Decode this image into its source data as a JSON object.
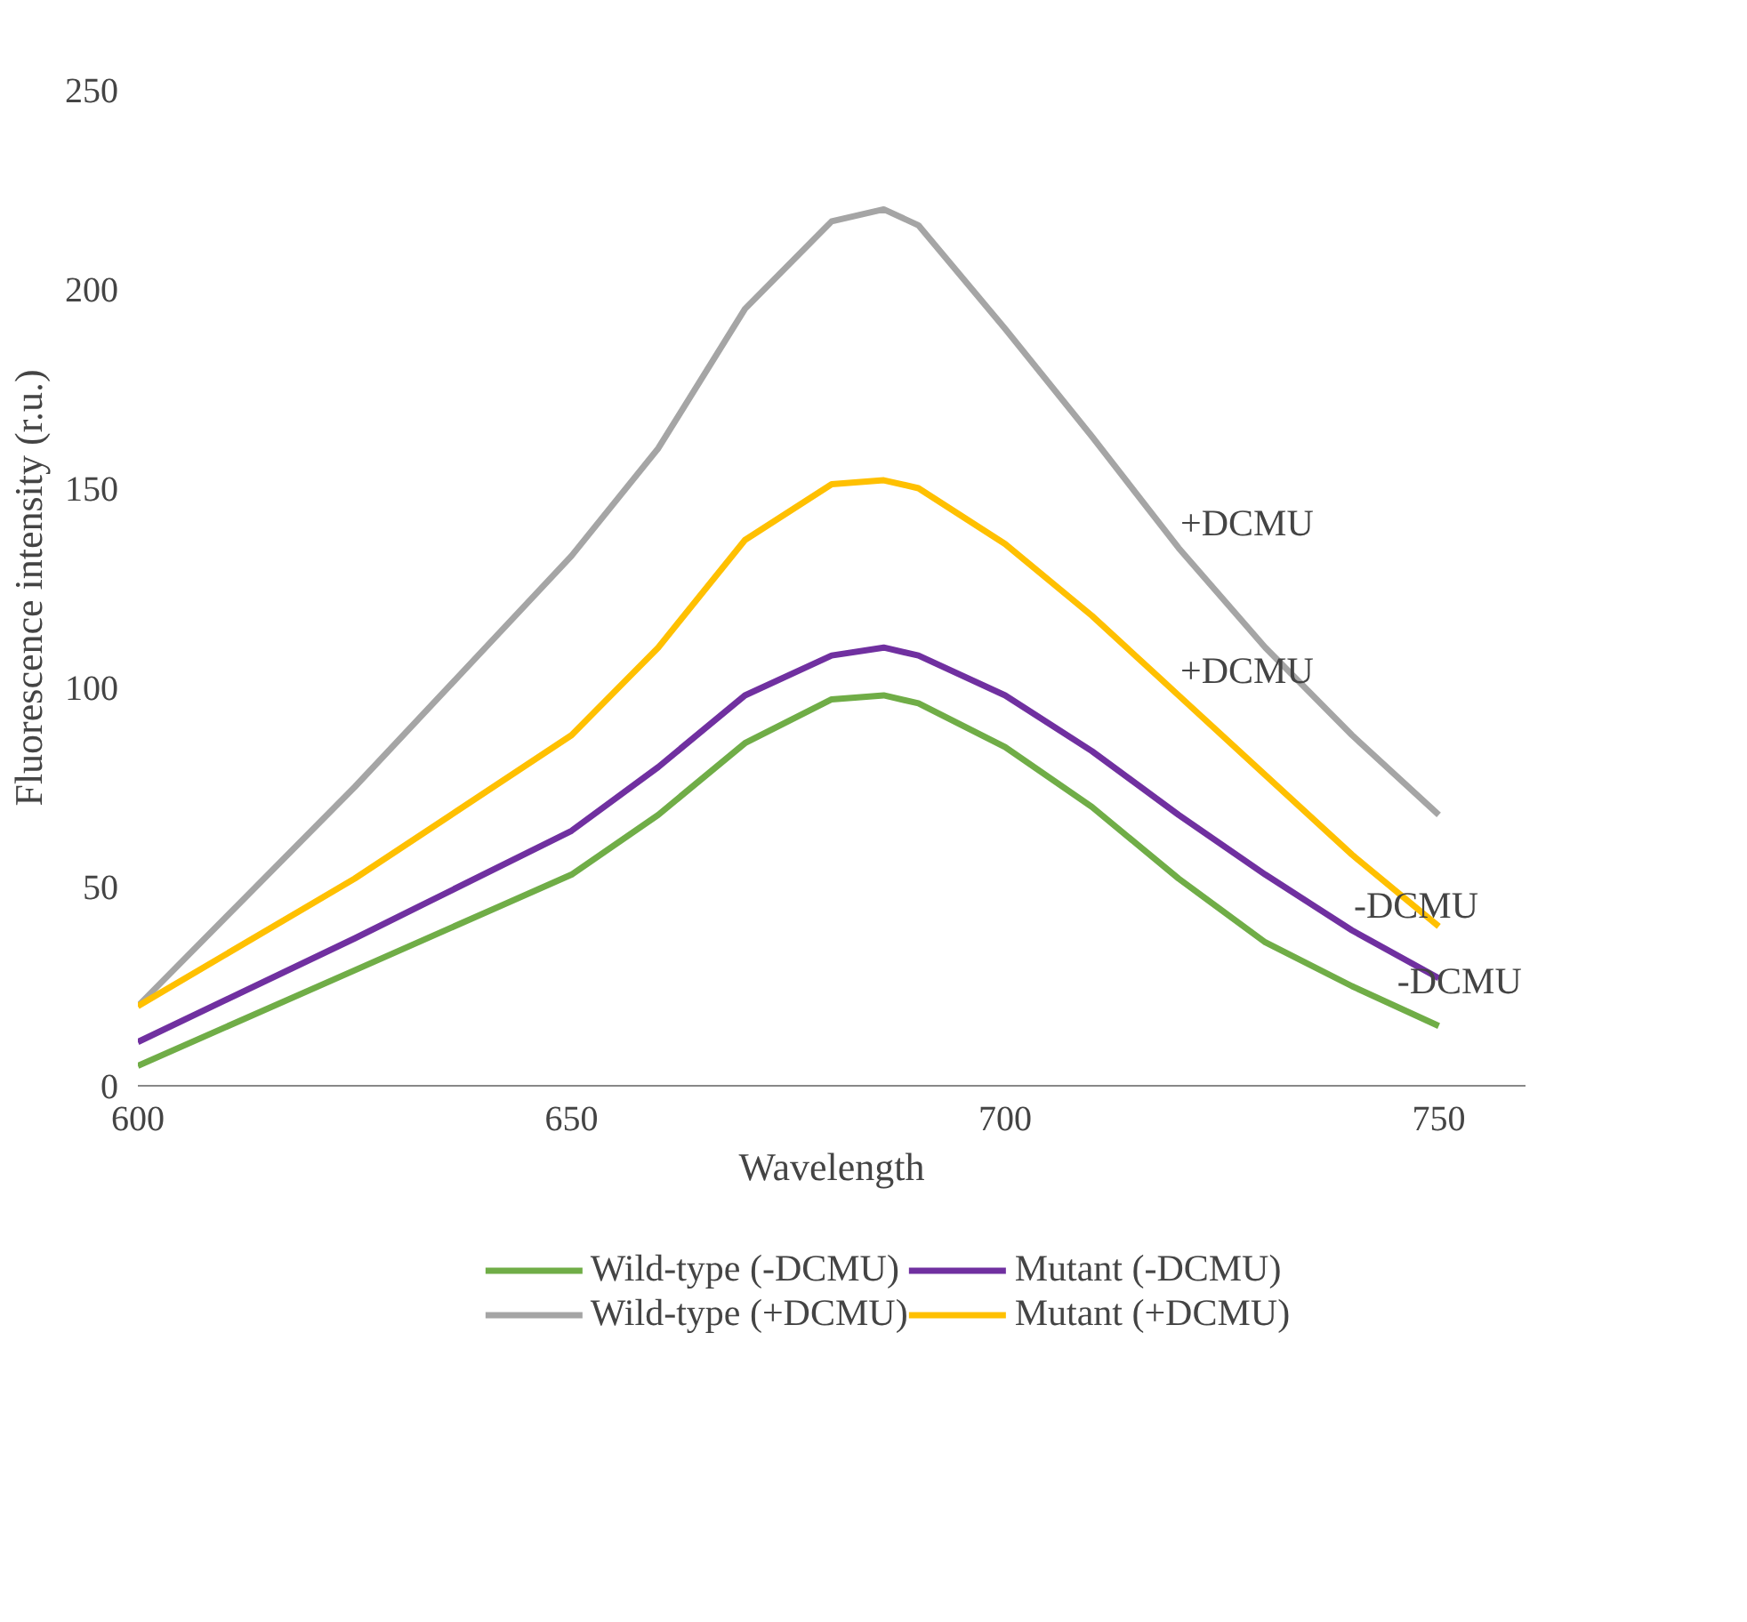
{
  "chart_data": {
    "type": "line",
    "xlabel": "Wavelength",
    "ylabel": "Fluorescence intensity (r.u.)",
    "x": [
      600,
      625,
      650,
      660,
      670,
      680,
      686,
      690,
      700,
      710,
      720,
      730,
      740,
      750
    ],
    "xlim": [
      600,
      760
    ],
    "xticks": [
      600,
      650,
      700,
      750
    ],
    "ylim": [
      0,
      250
    ],
    "yticks": [
      0,
      50,
      100,
      150,
      200,
      250
    ],
    "grid": false,
    "legend": "bottom",
    "line_style": "solid",
    "marker": "none",
    "series": [
      {
        "name": "Wild-type (-DCMU)",
        "color": "#70ad47",
        "values": [
          5,
          29,
          53,
          68,
          86,
          97,
          98,
          96,
          85,
          70,
          52,
          36,
          25,
          15
        ]
      },
      {
        "name": "Wild-type (+DCMU)",
        "color": "#a5a5a5",
        "values": [
          20,
          75,
          133,
          160,
          195,
          217,
          220,
          216,
          190,
          163,
          135,
          110,
          88,
          68
        ]
      },
      {
        "name": "Mutant (-DCMU)",
        "color": "#7030a0",
        "values": [
          11,
          37,
          64,
          80,
          98,
          108,
          110,
          108,
          98,
          84,
          68,
          53,
          39,
          27
        ]
      },
      {
        "name": "Mutant (+DCMU)",
        "color": "#ffc000",
        "values": [
          20,
          52,
          88,
          110,
          137,
          151,
          152,
          150,
          136,
          118,
          98,
          78,
          58,
          40
        ]
      }
    ],
    "annotations": [
      {
        "text": "+DCMU",
        "x": 720,
        "y": 135
      },
      {
        "text": "+DCMU",
        "x": 720,
        "y": 98
      },
      {
        "text": "-DCMU",
        "x": 740,
        "y": 39
      },
      {
        "text": "-DCMU",
        "x": 745,
        "y": 20
      }
    ]
  }
}
